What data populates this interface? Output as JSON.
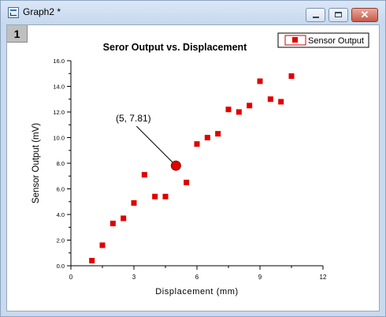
{
  "window": {
    "title": "Graph2 *",
    "layer_label": "1",
    "controls": [
      "minimize-icon",
      "maximize-icon",
      "close-icon"
    ],
    "close_glyph": "✕"
  },
  "chart_data": {
    "type": "scatter",
    "title": "Seror Output vs. Displacement",
    "xlabel": "Displacement (mm)",
    "ylabel": "Sensor Output (mV)",
    "xlim": [
      0,
      12
    ],
    "ylim": [
      0,
      16
    ],
    "xticks": [
      0,
      3,
      6,
      9,
      12
    ],
    "xtick_labels": [
      "0",
      "3",
      "6",
      "9",
      "12"
    ],
    "yticks": [
      0,
      2,
      4,
      6,
      8,
      10,
      12,
      14,
      16
    ],
    "ytick_labels": [
      "0.0",
      "2.0",
      "4.0",
      "6.0",
      "8.0",
      "10.0",
      "12.0",
      "14.0",
      "16.0"
    ],
    "grid": false,
    "legend_position": "top-right",
    "series": [
      {
        "name": "Sensor Output",
        "color": "#e00000",
        "marker": "square",
        "x": [
          1,
          1.5,
          2,
          2.5,
          3,
          3.5,
          4,
          4.5,
          5.5,
          6,
          6.5,
          7,
          7.5,
          8,
          8.5,
          9,
          9.5,
          10,
          10.5
        ],
        "y": [
          0.4,
          1.6,
          3.3,
          3.7,
          4.9,
          7.1,
          5.4,
          5.4,
          6.5,
          9.5,
          10.0,
          10.3,
          12.2,
          12.0,
          12.5,
          14.4,
          13.0,
          12.8,
          14.8
        ]
      }
    ],
    "highlight": {
      "x": 5,
      "y": 7.81,
      "color": "#e00000"
    },
    "annotations": [
      {
        "text": "(5, 7.81)",
        "x": 5,
        "y": 7.81
      }
    ]
  }
}
